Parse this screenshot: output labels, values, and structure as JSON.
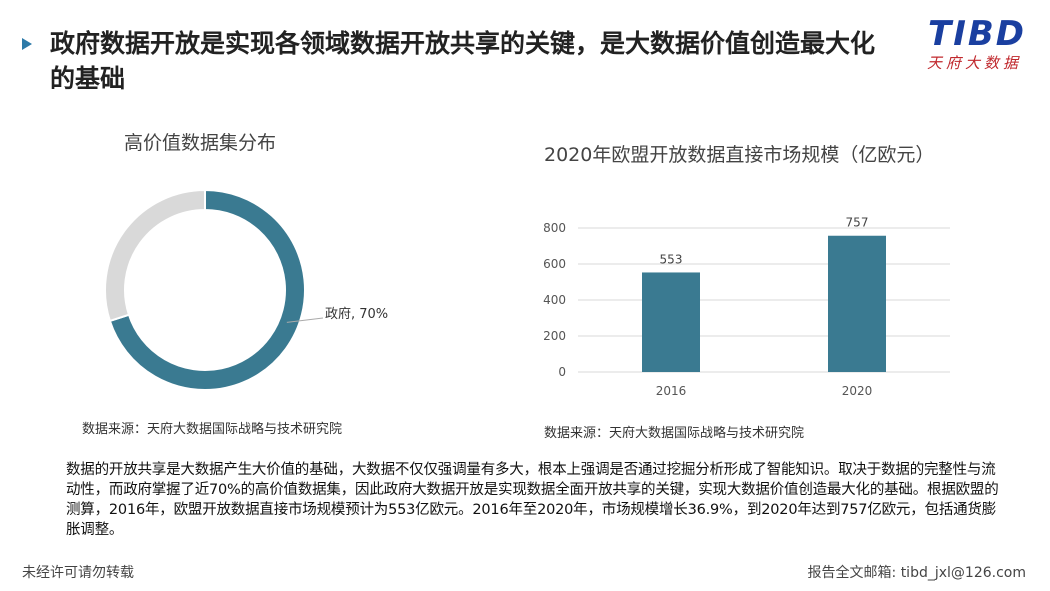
{
  "header": {
    "title": "政府数据开放是实现各领域数据开放共享的关键，是大数据价值创造最大化的基础",
    "logo_main": "TIBD",
    "logo_sub": "天府大数据"
  },
  "donut": {
    "title": "高价值数据集分布",
    "source": "数据来源：天府大数据国际战略与技术研究院"
  },
  "bar": {
    "title": "2020年欧盟开放数据直接市场规模（亿欧元）",
    "source": "数据来源：天府大数据国际战略与技术研究院"
  },
  "description": "数据的开放共享是大数据产生大价值的基础，大数据不仅仅强调量有多大，根本上强调是否通过挖掘分析形成了智能知识。取决于数据的完整性与流动性，而政府掌握了近70%的高价值数据集，因此政府大数据开放是实现数据全面开放共享的关键，实现大数据价值创造最大化的基础。根据欧盟的测算，2016年，欧盟开放数据直接市场规模预计为553亿欧元。2016年至2020年，市场规模增长36.9%，到2020年达到757亿欧元，包括通货膨胀调整。",
  "footer": {
    "left": "未经许可请勿转载",
    "right": "报告全文邮箱: tibd_jxl@126.com"
  },
  "colors": {
    "accent": "#3a7a91",
    "rest": "#d9d9d9",
    "title_marker": "#2d7aa8"
  },
  "chart_data": [
    {
      "type": "pie",
      "title": "高价值数据集分布",
      "slices": [
        {
          "label": "政府",
          "value": 70,
          "display": "政府, 70%"
        },
        {
          "label": "",
          "value": 30,
          "display": ""
        }
      ]
    },
    {
      "type": "bar",
      "title": "2020年欧盟开放数据直接市场规模（亿欧元）",
      "categories": [
        "2016",
        "2020"
      ],
      "values": [
        553,
        757
      ],
      "data_labels": [
        "553",
        "757"
      ],
      "ylim": [
        0,
        800
      ],
      "yticks": [
        "0",
        "200",
        "400",
        "600",
        "800"
      ],
      "grid": true
    }
  ]
}
